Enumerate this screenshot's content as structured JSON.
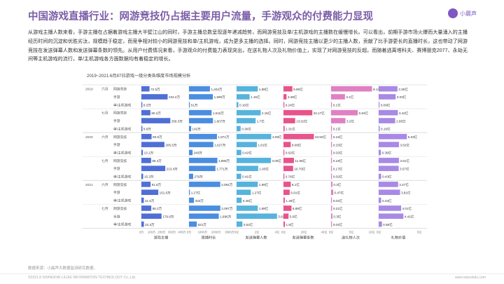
{
  "header": {
    "title": "中国游戏直播行业：网游竞技仍占据主要用户流量，手游观众的付费能力显现",
    "logo_text": "小晨声"
  },
  "intro": "从游戏主播人数来看，手游主播在占据着游戏主播大半壁江山的同时，手游主播总数呈现逐年递减趋势，而网游竞技及单/主机游戏的主播数在缓慢增长。可以看出，前期手游市场火爆而大量涌入的主播经历时间的沉淀和优胜劣汰，规模趋于稳定，而竞争相对较小的网游竞技和单/主机游戏，成为更多主播的选择。同时，网游竞技主播以更少的主播人数，贡献了比手游更长的直播时长，这也带动了网游竞技在发送弹幕人数和发送弹幕条数的领先。从用户付费情况来看，手游观众的付费能力表现突出，在送礼物人次及礼物价值上，实现了对网游竞技的反超。而随着逃离塔科夫、赛博朋克2077、永劫无间等主机游戏的流行，单/主机游戏各方面数据均有着稳定的增长。",
  "chart_data": {
    "type": "bar",
    "title": "2019~2021.6月87日游戏一级分类各维度市场规模分析",
    "columns": [
      "游戏主播",
      "直播时长",
      "发送弹幕人数",
      "发送弹幕条数",
      "送礼物人次",
      "礼物价值"
    ],
    "column_colors": [
      "#4f6fd6",
      "#4b8ee0",
      "#56b3dc",
      "#e8538a",
      "#e080c3",
      "#a889e5"
    ],
    "column_max": [
      400,
      3000,
      4,
      50,
      10,
      8
    ],
    "category_labels": [
      "网游竞技",
      "手游",
      "单/主机游戏"
    ],
    "rows": [
      {
        "year": "2019",
        "period": "六月",
        "category": "网游竞技",
        "values": [
          72.5,
          1404,
          1.89,
          9.89,
          9.14,
          3.35
        ],
        "labels": [
          "72.5万",
          "1,404万",
          "1.89亿",
          "9.89亿",
          "9.14亿",
          "3.35亿"
        ]
      },
      {
        "year": "",
        "period": "",
        "category": "手游",
        "values": [
          234.2,
          1599,
          1.16,
          3.38,
          3.1,
          3.03
        ],
        "labels": [
          "234.2万",
          "1,599万",
          "1.16亿",
          "3.38亿",
          "3.1亿",
          "3.03亿"
        ]
      },
      {
        "year": "",
        "period": "",
        "category": "单/主机游戏",
        "values": [
          8.3,
          51,
          0.16,
          0.24,
          0.1,
          0.09
        ],
        "labels": [
          "8.3万",
          "51万",
          "0.16亿",
          "0.24亿",
          "0.1亿",
          "0.09亿"
        ]
      },
      {
        "year": "",
        "period": "七月",
        "category": "网游竞技",
        "values": [
          80.2,
          1515,
          2.15,
          32.17,
          5.94,
          3.42
        ],
        "labels": [
          "80.2万",
          "1,515万",
          "2.15亿",
          "32.17亿",
          "5.94亿",
          "3.42亿"
        ]
      },
      {
        "year": "",
        "period": "",
        "category": "手游",
        "values": [
          258.3,
          1607,
          1.7,
          13.02,
          3.2,
          2.95
        ],
        "labels": [
          "258.3万",
          "1,607万",
          "1.7亿",
          "13.02亿",
          "3.2亿",
          "2.95亿"
        ]
      },
      {
        "year": "",
        "period": "",
        "category": "单/主机游戏",
        "values": [
          8.8,
          142,
          0.36,
          1.31,
          0.1,
          0.19
        ],
        "labels": [
          "8.8万",
          "142万",
          "0.36亿",
          "1.31亿",
          "0.1亿",
          "0.19亿"
        ]
      },
      {
        "year": "2020",
        "period": "六月",
        "category": "网游竞技",
        "values": [
          90.9,
          1871,
          3.09,
          33.92,
          0.16,
          5.03
        ],
        "labels": [
          "90.9万",
          "1,871万",
          "3.09亿",
          "33.92亿",
          "0.16亿",
          "5.03亿"
        ]
      },
      {
        "year": "",
        "period": "",
        "category": "手游",
        "values": [
          205.5,
          1627,
          1.81,
          8.08,
          0.15,
          3.62
        ],
        "labels": [
          "205.5万",
          "1,627万",
          "1.81亿",
          "8.08亿",
          "0.15亿",
          "3.62亿"
        ]
      },
      {
        "year": "",
        "period": "",
        "category": "单/主机游戏",
        "values": [
          13.1,
          240,
          0.42,
          0.62,
          0.02,
          0.39
        ],
        "labels": [
          "13.1万",
          "240万",
          "0.42亿",
          "0.62亿",
          "0.02亿",
          "0.39亿"
        ]
      },
      {
        "year": "",
        "period": "七月",
        "category": "网游竞技",
        "values": [
          86.4,
          1899,
          3.06,
          11.65,
          0.19,
          3.61
        ],
        "labels": [
          "86.4万",
          "1,899万",
          "3.06亿",
          "11.65亿",
          "0.19亿",
          "3.61亿"
        ]
      },
      {
        "year": "",
        "period": "",
        "category": "手游",
        "values": [
          213.4,
          1771,
          1.93,
          10.75,
          0.17,
          3.57
        ],
        "labels": [
          "213.4万",
          "1,771万",
          "1.93亿",
          "10.75亿",
          "0.17亿",
          "3.57亿"
        ]
      },
      {
        "year": "",
        "period": "",
        "category": "单/主机游戏",
        "values": [
          15.3,
          279,
          0.41,
          0.76,
          0.02,
          0.43
        ],
        "labels": [
          "15.3万",
          "279万",
          "0.41亿",
          "0.76亿",
          "0.02亿",
          "0.43亿"
        ]
      },
      {
        "year": "2021",
        "period": "六月",
        "category": "网游竞技",
        "values": [
          81.9,
          2094,
          1.89,
          8.1,
          0.3,
          3.47
        ],
        "labels": [
          "81.9万",
          "2,094万",
          "1.89亿",
          "8.1亿",
          "0.3亿",
          "3.47亿"
        ]
      },
      {
        "year": "",
        "period": "",
        "category": "手游",
        "values": [
          151.0,
          1.27,
          1.27,
          6.91,
          0.47,
          3.81
        ],
        "labels": [
          "151.0万",
          "1.27亿",
          "1.27亿",
          "6.91亿",
          "0.47亿",
          "3.81亿"
        ]
      },
      {
        "year": "",
        "period": "",
        "category": "单/主机游戏",
        "values": [
          21.5,
          333,
          0.45,
          1.46,
          0.02,
          0.43
        ],
        "labels": [
          "21.5万",
          "333万",
          "0.45亿",
          "1.46亿",
          "0.02亿",
          "0.43亿"
        ]
      },
      {
        "year": "",
        "period": "七月",
        "category": "网游竞技",
        "values": [
          88.2,
          2097,
          1.89,
          8.89,
          0.21,
          4.01
        ],
        "labels": [
          "88.2万",
          "2,097万",
          "1.89亿",
          "8.89亿",
          "0.21亿",
          "4.01亿"
        ]
      },
      {
        "year": "",
        "period": "",
        "category": "手游",
        "values": [
          179.9,
          1996,
          3.61,
          5.6,
          0.3,
          4.41
        ],
        "labels": [
          "179.9万",
          "1,996万",
          "3.61亿",
          "5.6亿",
          "0.3亿",
          "4.41亿"
        ]
      },
      {
        "year": "",
        "period": "",
        "category": "单/主机游戏",
        "values": [
          22.3,
          521,
          0.52,
          1.6,
          0.04,
          0.58
        ],
        "labels": [
          "22.3万",
          "521万",
          "0.52亿",
          "1.6亿",
          "0.04亿",
          "0.58亿"
        ]
      }
    ],
    "axis_ticks": [
      [
        "0万",
        "100万",
        "200万",
        "300万",
        "400万"
      ],
      [
        "0万",
        "1000万",
        "2000万",
        "3000万"
      ],
      [
        "0亿",
        "2亿",
        "4亿"
      ],
      [
        "0亿",
        "20亿",
        "40亿"
      ],
      [
        "0亿",
        "5亿",
        "10亿"
      ],
      [
        "0亿",
        "5亿"
      ]
    ]
  },
  "footer": {
    "source": "数据来源：小晨声大数据监测研究数据。",
    "copyright": "©2021.8 SHANGHAI LIUJIE INFORMATION  TECHNOLOGY Co.,Ltd.",
    "website": "www.xiaoshulu.com"
  }
}
